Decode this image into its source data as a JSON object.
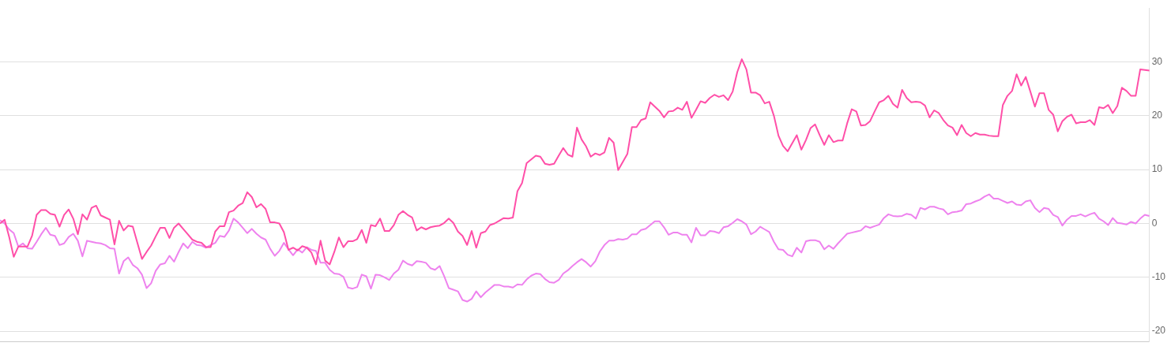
{
  "chart_data": {
    "type": "line",
    "categories": [
      null,
      null,
      null,
      null,
      null,
      null,
      null,
      null,
      null,
      null,
      null,
      null,
      null,
      null,
      null,
      null,
      null,
      null,
      null,
      null,
      null,
      null,
      null,
      null,
      null,
      null,
      null,
      null,
      null,
      null,
      null,
      null,
      null,
      null,
      null,
      null,
      null,
      null,
      null,
      null,
      null,
      null,
      null,
      null,
      null,
      null,
      null,
      null,
      null,
      null,
      null,
      null,
      null,
      null,
      null,
      null,
      null,
      null,
      null,
      null,
      null,
      null,
      null,
      null,
      null,
      null,
      null,
      null,
      null,
      null,
      null,
      null,
      null,
      null,
      null,
      null,
      null,
      null,
      null,
      null,
      null,
      null,
      null,
      null,
      null,
      null,
      null,
      null,
      null,
      null,
      null,
      null,
      null,
      null,
      null,
      null,
      null,
      null,
      null,
      null,
      null,
      null,
      null,
      null,
      null,
      null,
      null,
      null,
      null,
      null,
      null,
      null,
      null,
      null,
      null,
      null,
      null,
      null,
      null,
      null,
      null,
      null,
      null,
      null,
      null,
      null,
      null,
      null,
      null,
      null,
      null,
      null,
      null,
      null,
      null,
      null,
      null,
      null,
      null,
      null,
      null,
      null,
      null,
      null,
      null,
      null,
      null,
      null,
      null,
      null,
      null,
      null,
      null,
      null,
      null,
      null,
      null,
      null,
      null,
      null,
      null,
      null,
      null,
      null,
      null,
      null,
      null,
      null,
      null,
      null,
      null,
      null,
      null,
      null,
      null,
      null,
      null,
      null,
      null,
      null,
      null,
      null,
      null,
      null,
      null,
      null,
      null,
      null,
      null,
      null,
      null,
      null,
      null,
      null,
      null,
      null,
      null,
      null,
      null,
      null,
      null,
      null,
      null,
      null,
      null,
      null,
      null,
      null,
      null,
      null,
      null,
      null,
      null,
      null,
      null,
      null,
      null,
      null,
      null,
      null,
      null,
      null,
      null,
      null,
      null,
      null,
      null,
      null,
      null,
      null,
      null,
      null,
      null,
      null,
      null,
      null,
      null,
      null,
      null,
      null,
      null,
      null,
      null,
      null,
      null,
      null,
      null,
      null,
      null,
      null,
      null,
      null
    ],
    "series": [
      {
        "color": "#ff4fa8",
        "values": [
          0,
          0.7,
          -2.5,
          -6.2,
          -4.3,
          -4.3,
          -4.3,
          -2.3,
          1.6,
          2.5,
          2.5,
          1.8,
          1.6,
          -0.6,
          1.6,
          2.6,
          0.9,
          -2.0,
          1.7,
          0.7,
          2.9,
          3.3,
          1.5,
          1.1,
          0.7,
          -3.9,
          0.5,
          -1.3,
          -0.4,
          -0.6,
          -3.6,
          -6.6,
          -5.3,
          -4.1,
          -2.4,
          -0.8,
          -0.8,
          -2.7,
          -0.8,
          0,
          -1.0,
          -2.0,
          -3.0,
          -3.4,
          -3.6,
          -4.4,
          -4.4,
          -1.5,
          -0.5,
          -0.5,
          2.1,
          2.4,
          3.3,
          3.8,
          5.8,
          4.9,
          3.0,
          3.6,
          2.7,
          0.2,
          0.2,
          0,
          -1.6,
          -4.9,
          -4.5,
          -5.0,
          -4.2,
          -4.5,
          -5.4,
          -7.6,
          -3.2,
          -6.9,
          -7.6,
          -5.3,
          -2.6,
          -4.4,
          -3.3,
          -3.3,
          -2.9,
          -1.2,
          -3.6,
          -0.3,
          -0.5,
          0.9,
          -1.4,
          -1.4,
          -0.3,
          1.6,
          2.3,
          1.6,
          1.1,
          -1.3,
          -0.7,
          -1.1,
          -0.7,
          -0.5,
          -0.4,
          0.1,
          0.9,
          0.1,
          -1.5,
          -2.3,
          -4.0,
          -1.4,
          -4.5,
          -1.8,
          -1.5,
          -0.3,
          0,
          0.5,
          1.0,
          0.9,
          1.1,
          6.0,
          7.5,
          11.2,
          11.9,
          12.6,
          12.4,
          11.1,
          10.9,
          11.1,
          12.6,
          14.0,
          12.8,
          12.4,
          17.8,
          15.6,
          14.3,
          12.4,
          13.0,
          12.7,
          13.2,
          15.9,
          15.0,
          9.9,
          11.4,
          12.9,
          17.9,
          17.9,
          19.2,
          19.5,
          22.5,
          21.7,
          20.9,
          19.7,
          20.8,
          20.9,
          21.5,
          21.1,
          22.6,
          19.6,
          21.1,
          22.7,
          22.4,
          23.3,
          23.9,
          23.5,
          23.8,
          22.9,
          24.5,
          28.1,
          30.5,
          28.6,
          24.3,
          24.3,
          23.8,
          22.3,
          22.6,
          20.0,
          16.3,
          14.4,
          13.4,
          14.9,
          16.4,
          13.7,
          15.5,
          17.7,
          18.4,
          16.4,
          14.6,
          16.4,
          15.1,
          15.4,
          15.4,
          18.6,
          21.2,
          20.8,
          18.2,
          18.3,
          19.0,
          20.8,
          22.5,
          22.9,
          23.7,
          22.2,
          21.5,
          24.8,
          23.3,
          22.5,
          22.6,
          22.5,
          21.9,
          19.7,
          21.0,
          20.5,
          19.2,
          18.2,
          17.8,
          16.4,
          18.3,
          16.8,
          16.2,
          16.8,
          16.5,
          16.5,
          16.3,
          16.2,
          16.2,
          22.0,
          23.7,
          24.6,
          27.7,
          25.6,
          27.2,
          24.5,
          21.7,
          24.2,
          24.2,
          21.1,
          20.2,
          17.1,
          19.0,
          19.8,
          20.2,
          18.6,
          18.8,
          18.8,
          19.2,
          18.3,
          21.6,
          21.4,
          22.0,
          20.5,
          21.8,
          25.2,
          24.6,
          23.7,
          23.7,
          28.6,
          28.5,
          28.4
        ]
      },
      {
        "color": "#ee82ee",
        "values": [
          0.6,
          0.0,
          -1.1,
          -1.8,
          -4.3,
          -3.7,
          -4.6,
          -4.7,
          -3.4,
          -2.0,
          -0.8,
          -2.1,
          -2.3,
          -4.0,
          -3.7,
          -2.5,
          -1.9,
          -3.2,
          -6.1,
          -3.2,
          -3.4,
          -3.6,
          -3.7,
          -4.0,
          -4.6,
          -4.7,
          -9.3,
          -7.0,
          -6.3,
          -7.7,
          -8.3,
          -9.5,
          -12.0,
          -11.1,
          -8.8,
          -7.6,
          -7.4,
          -6.0,
          -7.1,
          -5.3,
          -3.7,
          -4.6,
          -3.4,
          -4.0,
          -4.1,
          -4.5,
          -4.0,
          -3.6,
          -2.3,
          -2.5,
          -1.3,
          0.9,
          0.2,
          -0.8,
          -1.8,
          -1.0,
          -1.9,
          -2.6,
          -3.0,
          -4.7,
          -6.0,
          -5.1,
          -3.6,
          -4.8,
          -5.9,
          -4.8,
          -5.4,
          -4.4,
          -4.9,
          -5.1,
          -7.3,
          -7.3,
          -8.6,
          -9.3,
          -9.4,
          -9.9,
          -11.9,
          -12.1,
          -11.8,
          -9.5,
          -9.8,
          -12.1,
          -9.5,
          -9.6,
          -10.0,
          -10.5,
          -9.3,
          -8.6,
          -6.9,
          -7.5,
          -7.8,
          -7.0,
          -7.1,
          -7.3,
          -8.3,
          -8.6,
          -7.9,
          -9.8,
          -12.0,
          -12.3,
          -12.6,
          -14.2,
          -14.5,
          -14.0,
          -12.6,
          -13.7,
          -12.8,
          -12.1,
          -11.4,
          -11.4,
          -11.7,
          -11.7,
          -11.9,
          -11.3,
          -11.4,
          -10.4,
          -9.7,
          -9.3,
          -9.4,
          -10.3,
          -10.9,
          -11.0,
          -10.5,
          -9.3,
          -8.7,
          -7.9,
          -7.2,
          -6.6,
          -7.2,
          -8.0,
          -7.0,
          -5.2,
          -4.0,
          -3.2,
          -3.2,
          -2.9,
          -3.0,
          -2.8,
          -2.0,
          -2.0,
          -1.2,
          -1.0,
          -0.3,
          0.4,
          0.4,
          -0.7,
          -2.1,
          -1.7,
          -1.7,
          -2.1,
          -2.1,
          -3.5,
          -0.8,
          -2.2,
          -2.2,
          -1.4,
          -1.5,
          -1.8,
          -0.7,
          -0.5,
          0.1,
          0.8,
          0.4,
          -0.2,
          -2.0,
          -1.5,
          -0.6,
          -1.1,
          -1.6,
          -3.4,
          -4.8,
          -4.9,
          -5.8,
          -6.1,
          -4.5,
          -5.4,
          -3.3,
          -3.1,
          -3.1,
          -3.4,
          -4.8,
          -4.1,
          -4.7,
          -3.7,
          -2.8,
          -1.9,
          -1.7,
          -1.5,
          -1.3,
          -0.5,
          -0.8,
          -0.5,
          -0.2,
          1.0,
          1.7,
          1.4,
          1.3,
          1.4,
          1.8,
          1.6,
          0.9,
          2.9,
          2.6,
          3.1,
          3.1,
          2.8,
          2.6,
          1.7,
          2.1,
          2.2,
          2.4,
          3.6,
          3.7,
          4.1,
          4.4,
          5.0,
          5.4,
          4.6,
          4.6,
          4.2,
          3.8,
          4.1,
          3.5,
          3.4,
          4.1,
          4.3,
          2.9,
          2.1,
          2.9,
          2.7,
          1.6,
          1.2,
          -0.4,
          0.7,
          1.4,
          1.4,
          1.7,
          1.3,
          1.7,
          2.0,
          0.9,
          0.4,
          -0.3,
          1.0,
          0.1,
          0,
          -0.2,
          0.3,
          0,
          0.9,
          1.6,
          1.4
        ]
      }
    ],
    "ylim": [
      -22,
      40
    ],
    "yticks": [
      -20,
      -10,
      0,
      10,
      20,
      30
    ],
    "grid": "y",
    "tick_labels": "y",
    "marker": "none"
  }
}
